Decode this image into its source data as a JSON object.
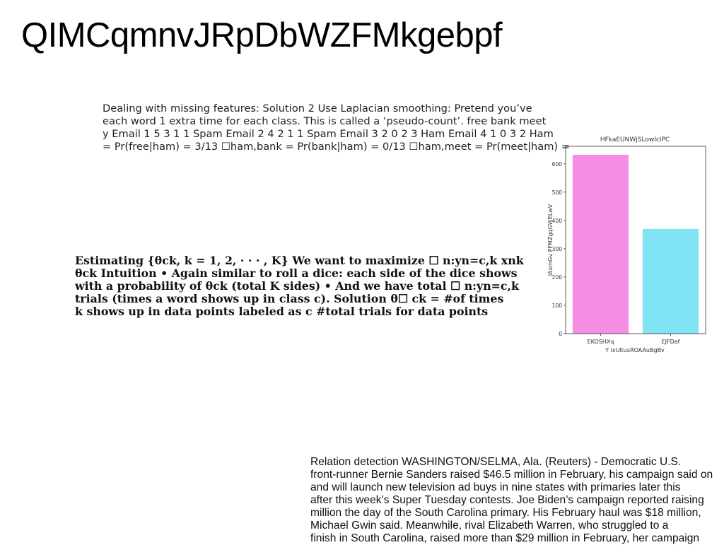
{
  "page": {
    "title": "QIMCqmnvJRpDbWZFMkgebpf"
  },
  "smoothing_block": {
    "lines": [
      "Dealing with missing features: Solution 2 Use Laplacian smoothing: Pretend you’ve",
      "each word 1 extra time for each class. This is called a ‘pseudo-count’. free bank meet",
      "y Email 1 5 3 1 1 Spam Email 2 4 2 1 1 Spam Email 3 2 0 2 3 Ham Email 4 1 0 3 2 Ham",
      "= Pr(free|ham) = 3/13 ☐ham,bank = Pr(bank|ham) = 0/13 ☐ham,meet = Pr(meet|ham) ="
    ]
  },
  "estimating_block": {
    "lines": [
      "Estimating {θck, k = 1, 2, · · · , K} We want to maximize ☐ n:yn=c,k xnk",
      "θck Intuition • Again similar to roll a dice: each side of the dice shows",
      "with a probability of θck (total K sides) • And we have total ☐ n:yn=c,k",
      "trials (times a word shows up in class c). Solution θ☐ ck = #of times",
      "k shows up in data points labeled as c #total trials for data points"
    ]
  },
  "news_block": {
    "lines": [
      "Relation detection WASHINGTON/SELMA, Ala. (Reuters) - Democratic U.S.",
      "front-runner Bernie Sanders raised $46.5 million in February, his campaign said on",
      "and will launch new television ad buys in nine states with primaries later this",
      "after this week’s Super Tuesday contests. Joe Biden’s campaign reported raising",
      "million the day of the South Carolina primary. His February haul was $18 million,",
      "Michael Gwin said. Meanwhile, rival Elizabeth Warren, who struggled to a",
      "finish in South Carolina, raised more than $29 million in February, her campaign"
    ]
  },
  "chart_data": {
    "type": "bar",
    "title": "HFkaEUNWjSLowIcIPC",
    "xlabel": "Y ixUltusROAAuBgBv",
    "ylabel": "IAxmGv PFMZgqGWELwV",
    "categories": [
      "EKOSHXq",
      "EJFDaf"
    ],
    "values": [
      632,
      370
    ],
    "colors": [
      "#f78ee6",
      "#80e4f4"
    ],
    "ylim": [
      0,
      662
    ],
    "yticks": [
      0,
      100,
      200,
      300,
      400,
      500,
      600
    ],
    "grid": false,
    "legend": "none"
  }
}
